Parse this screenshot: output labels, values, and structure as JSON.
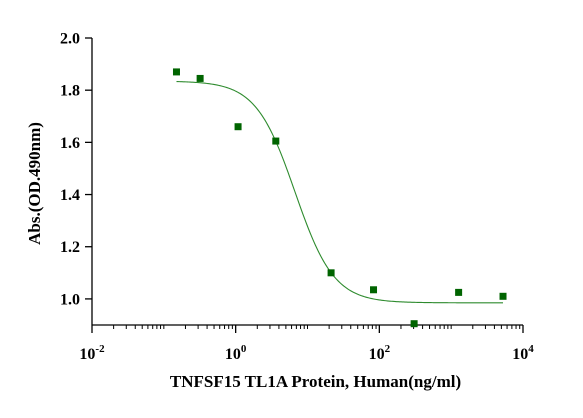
{
  "chart_data": {
    "type": "scatter",
    "title": "",
    "xlabel": "TNFSF15 TL1A Protein, Human(ng/ml)",
    "ylabel": "Abs.(OD.490nm)",
    "x_scale": "log10",
    "xlim": [
      0.01,
      10000
    ],
    "ylim": [
      0.9,
      2.0
    ],
    "x_major_ticks": [
      {
        "value": 0.01,
        "base": "10",
        "exp": "-2"
      },
      {
        "value": 1,
        "base": "10",
        "exp": "0"
      },
      {
        "value": 100,
        "base": "10",
        "exp": "2"
      },
      {
        "value": 10000,
        "base": "10",
        "exp": "4"
      }
    ],
    "y_ticks": [
      {
        "value": 1.0,
        "label": "1.0"
      },
      {
        "value": 1.2,
        "label": "1.2"
      },
      {
        "value": 1.4,
        "label": "1.4"
      },
      {
        "value": 1.6,
        "label": "1.6"
      },
      {
        "value": 1.8,
        "label": "1.8"
      },
      {
        "value": 2.0,
        "label": "2.0"
      }
    ],
    "grid": false,
    "legend": "none",
    "series": [
      {
        "points": [
          {
            "x": 0.15,
            "y": 1.87
          },
          {
            "x": 0.32,
            "y": 1.845
          },
          {
            "x": 1.08,
            "y": 1.66
          },
          {
            "x": 3.62,
            "y": 1.605
          },
          {
            "x": 21.3,
            "y": 1.1
          },
          {
            "x": 83,
            "y": 1.035
          },
          {
            "x": 305,
            "y": 0.905
          },
          {
            "x": 1270,
            "y": 1.025
          },
          {
            "x": 5270,
            "y": 1.01
          }
        ],
        "color": "#006400",
        "marker": "square"
      }
    ],
    "fit_curve": {
      "model": "4PL",
      "top": 1.835,
      "bottom": 0.985,
      "ec50": 6.7,
      "hill": 1.6,
      "x_range": [
        0.15,
        5270
      ],
      "color": "#2e8b2e"
    }
  }
}
